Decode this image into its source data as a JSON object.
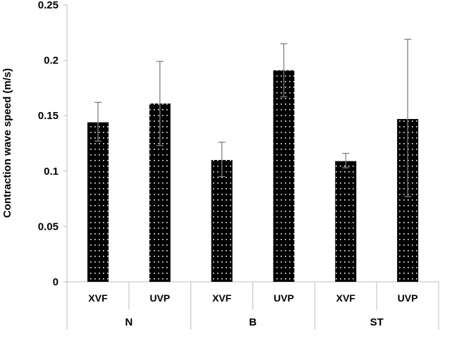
{
  "chart_data": {
    "type": "bar",
    "title": "",
    "ylabel": "Contraction wave speed (m/s)",
    "xlabel": "",
    "ylim": [
      0,
      0.25
    ],
    "yticks": [
      {
        "value": 0,
        "label": "0"
      },
      {
        "value": 0.05,
        "label": "0.05"
      },
      {
        "value": 0.1,
        "label": "0.1"
      },
      {
        "value": 0.15,
        "label": "0.15"
      },
      {
        "value": 0.2,
        "label": "0.2"
      },
      {
        "value": 0.25,
        "label": "0.25"
      }
    ],
    "groups": [
      "N",
      "B",
      "ST"
    ],
    "categories": [
      "XVF",
      "UVP",
      "XVF",
      "UVP",
      "XVF",
      "UVP"
    ],
    "values": [
      0.144,
      0.161,
      0.11,
      0.191,
      0.109,
      0.147
    ],
    "error_high": [
      0.162,
      0.199,
      0.126,
      0.215,
      0.116,
      0.219
    ],
    "error_low": [
      0.127,
      0.123,
      0.095,
      0.167,
      0.103,
      0.077
    ],
    "bar_fill": "dotted black",
    "grid": false,
    "legend": "none"
  },
  "colors": {
    "bar": "#000000",
    "dot": "#ffffff",
    "axis": "#bfbfbf",
    "error": "#7f7f7f"
  }
}
